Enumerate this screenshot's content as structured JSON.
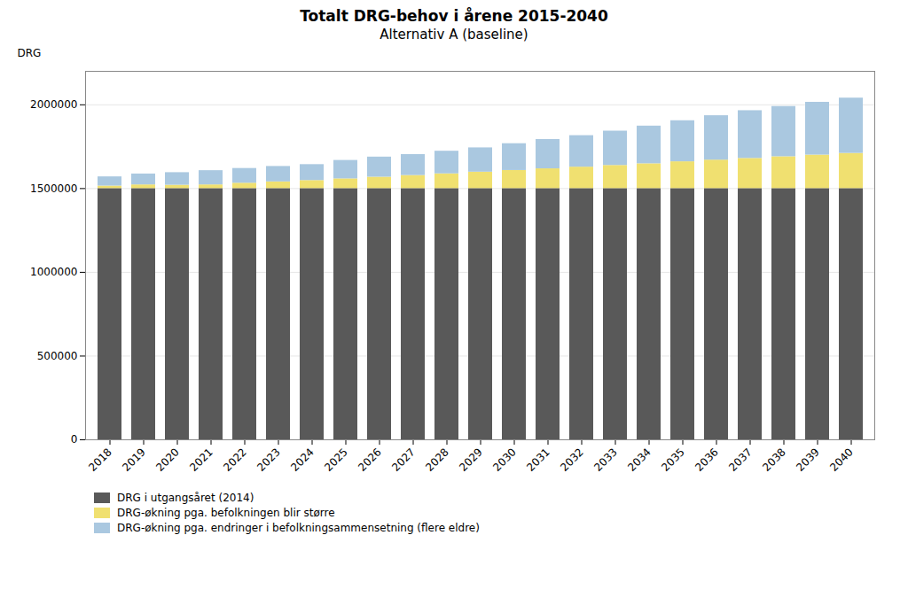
{
  "chart_data": {
    "type": "bar",
    "stacked": true,
    "title": "Totalt DRG-behov i årene 2015-2040",
    "subtitle": "Alternativ A (baseline)",
    "ylabel": "DRG",
    "categories": [
      "2018",
      "2019",
      "2020",
      "2021",
      "2022",
      "2023",
      "2024",
      "2025",
      "2026",
      "2027",
      "2028",
      "2029",
      "2030",
      "2031",
      "2032",
      "2033",
      "2034",
      "2035",
      "2036",
      "2037",
      "2038",
      "2039",
      "2040"
    ],
    "series": [
      {
        "name": "DRG i utgangsåret (2014)",
        "color": "#595959",
        "values": [
          1500000,
          1500000,
          1500000,
          1500000,
          1500000,
          1500000,
          1500000,
          1500000,
          1500000,
          1500000,
          1500000,
          1500000,
          1500000,
          1500000,
          1500000,
          1500000,
          1500000,
          1500000,
          1500000,
          1500000,
          1500000,
          1500000,
          1500000
        ]
      },
      {
        "name": "DRG-økning pga. befolkningen blir større",
        "color": "#f0e070",
        "values": [
          15000,
          22000,
          20000,
          22000,
          32000,
          40000,
          48000,
          58000,
          68000,
          78000,
          88000,
          98000,
          108000,
          118000,
          128000,
          138000,
          148000,
          160000,
          170000,
          180000,
          190000,
          200000,
          210000
        ]
      },
      {
        "name": "DRG-økning pga. endringer i befolkningsammensetning (flere eldre)",
        "color": "#aac8e0",
        "values": [
          55000,
          65000,
          75000,
          85000,
          88000,
          92000,
          95000,
          110000,
          120000,
          125000,
          135000,
          145000,
          160000,
          175000,
          188000,
          205000,
          225000,
          245000,
          265000,
          285000,
          300000,
          315000,
          330000
        ]
      }
    ],
    "ylim": [
      0,
      2200000
    ],
    "yticks": [
      0,
      500000,
      1000000,
      1500000,
      2000000
    ],
    "grid": true,
    "legend": "bottom"
  }
}
